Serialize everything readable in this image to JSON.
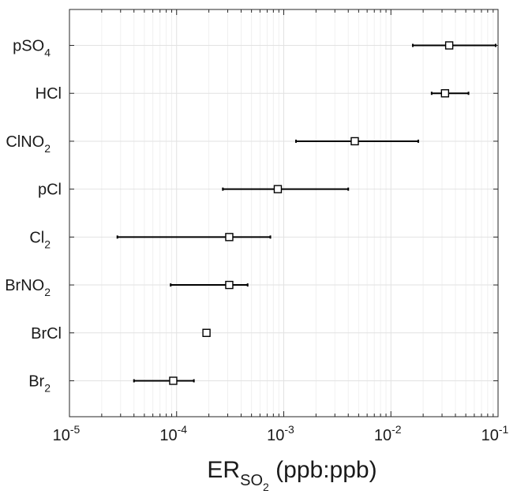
{
  "chart_data": {
    "type": "scatter",
    "scale_x": "log",
    "xlim": [
      1e-05,
      0.1
    ],
    "xticks": [
      {
        "base": "10",
        "exp": "-5",
        "value": 1e-05
      },
      {
        "base": "10",
        "exp": "-4",
        "value": 0.0001
      },
      {
        "base": "10",
        "exp": "-3",
        "value": 0.001
      },
      {
        "base": "10",
        "exp": "-2",
        "value": 0.01
      },
      {
        "base": "10",
        "exp": "-1",
        "value": 0.1
      }
    ],
    "xlabel": {
      "main": "ER",
      "sub1": "SO",
      "sub2": "2",
      "rest": " (ppb:ppb)"
    },
    "grid": true,
    "categories": [
      {
        "base": "pSO",
        "sub": "4"
      },
      {
        "base": "HCl",
        "sub": ""
      },
      {
        "base": "ClNO",
        "sub": "2"
      },
      {
        "base": "pCl",
        "sub": ""
      },
      {
        "base": "Cl",
        "sub": "2"
      },
      {
        "base": "BrNO",
        "sub": "2"
      },
      {
        "base": "BrCl",
        "sub": ""
      },
      {
        "base": "Br",
        "sub": "2"
      }
    ],
    "points": [
      {
        "value": 0.035,
        "low": 0.016,
        "high": 0.095
      },
      {
        "value": 0.032,
        "low": 0.024,
        "high": 0.053
      },
      {
        "value": 0.0046,
        "low": 0.0013,
        "high": 0.018
      },
      {
        "value": 0.00088,
        "low": 0.00027,
        "high": 0.004
      },
      {
        "value": 0.00031,
        "low": 2.8e-05,
        "high": 0.00075
      },
      {
        "value": 0.00031,
        "low": 8.8e-05,
        "high": 0.00046
      },
      {
        "value": 0.00019,
        "low": 0.00019,
        "high": 0.00019
      },
      {
        "value": 9.3e-05,
        "low": 4e-05,
        "high": 0.000145
      }
    ]
  },
  "colors": {
    "marker": "#000000",
    "grid_major": "#e2e2e2",
    "grid_minor": "#f0f0f0",
    "axis": "#262626"
  }
}
